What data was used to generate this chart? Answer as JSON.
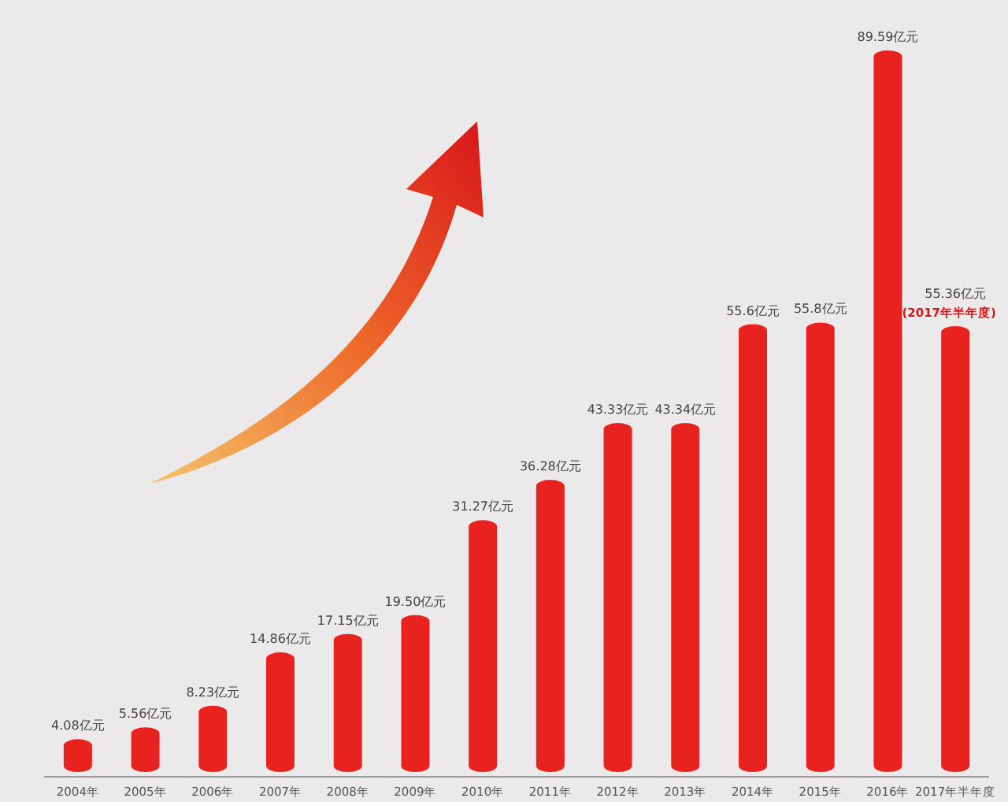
{
  "chart_data": {
    "type": "bar",
    "categories": [
      "2004年",
      "2005年",
      "2006年",
      "2007年",
      "2008年",
      "2009年",
      "2010年",
      "2011年",
      "2012年",
      "2013年",
      "2014年",
      "2015年",
      "2016年",
      "2017年半年度"
    ],
    "values": [
      4.08,
      5.56,
      8.23,
      14.86,
      17.15,
      19.5,
      31.27,
      36.28,
      43.33,
      43.34,
      55.6,
      55.8,
      89.59,
      55.36
    ],
    "value_labels": [
      "4.08亿元",
      "5.56亿元",
      "8.23亿元",
      "14.86亿元",
      "17.15亿元",
      "19.50亿元",
      "31.27亿元",
      "36.28亿元",
      "43.33亿元",
      "43.34亿元",
      "55.6亿元",
      "55.8亿元",
      "89.59亿元",
      "55.36亿元"
    ],
    "color": "#e8231f",
    "annotations": [
      {
        "text": "(2017年半年度)",
        "x": "2017年半年度",
        "y": 55.36
      }
    ]
  }
}
